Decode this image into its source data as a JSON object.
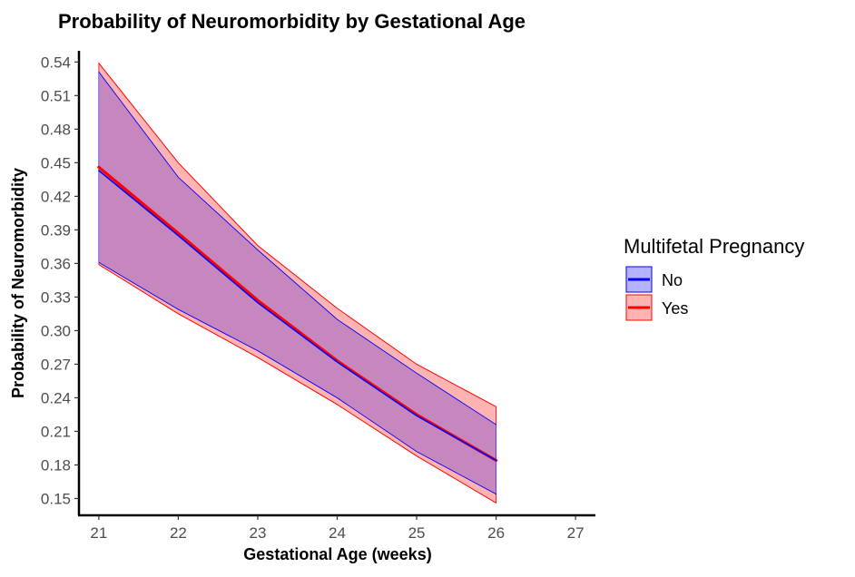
{
  "chart_data": {
    "type": "line",
    "title": "Probability of Neuromorbidity by Gestational Age",
    "xlabel": "Gestational Age (weeks)",
    "ylabel": "Probability of Neuromorbidity",
    "xlim": [
      20.75,
      27.25
    ],
    "ylim": [
      0.135,
      0.55
    ],
    "xticks": [
      21,
      22,
      23,
      24,
      25,
      26,
      27
    ],
    "yticks": [
      0.15,
      0.18,
      0.21,
      0.24,
      0.27,
      0.3,
      0.33,
      0.36,
      0.39,
      0.42,
      0.45,
      0.48,
      0.51,
      0.54
    ],
    "ytick_labels": [
      "0.15",
      "0.18",
      "0.21",
      "0.24",
      "0.27",
      "0.30",
      "0.33",
      "0.36",
      "0.39",
      "0.42",
      "0.45",
      "0.48",
      "0.51",
      "0.54"
    ],
    "x": [
      21,
      22,
      23,
      24,
      25,
      26
    ],
    "series": [
      {
        "name": "No",
        "color": "#0000ff",
        "fill": "#b3b3ff",
        "values": [
          0.443,
          0.385,
          0.325,
          0.272,
          0.224,
          0.184
        ],
        "lower": [
          0.361,
          0.319,
          0.282,
          0.24,
          0.192,
          0.154
        ],
        "upper": [
          0.531,
          0.437,
          0.372,
          0.31,
          0.262,
          0.216
        ]
      },
      {
        "name": "Yes",
        "color": "#ff0000",
        "fill": "#ffb3b3",
        "values": [
          0.446,
          0.387,
          0.327,
          0.273,
          0.225,
          0.184
        ],
        "lower": [
          0.359,
          0.315,
          0.276,
          0.234,
          0.188,
          0.146
        ],
        "upper": [
          0.539,
          0.45,
          0.376,
          0.32,
          0.27,
          0.232
        ]
      }
    ],
    "legend": {
      "title": "Multifetal Pregnancy",
      "position": "right"
    },
    "grid": false
  }
}
